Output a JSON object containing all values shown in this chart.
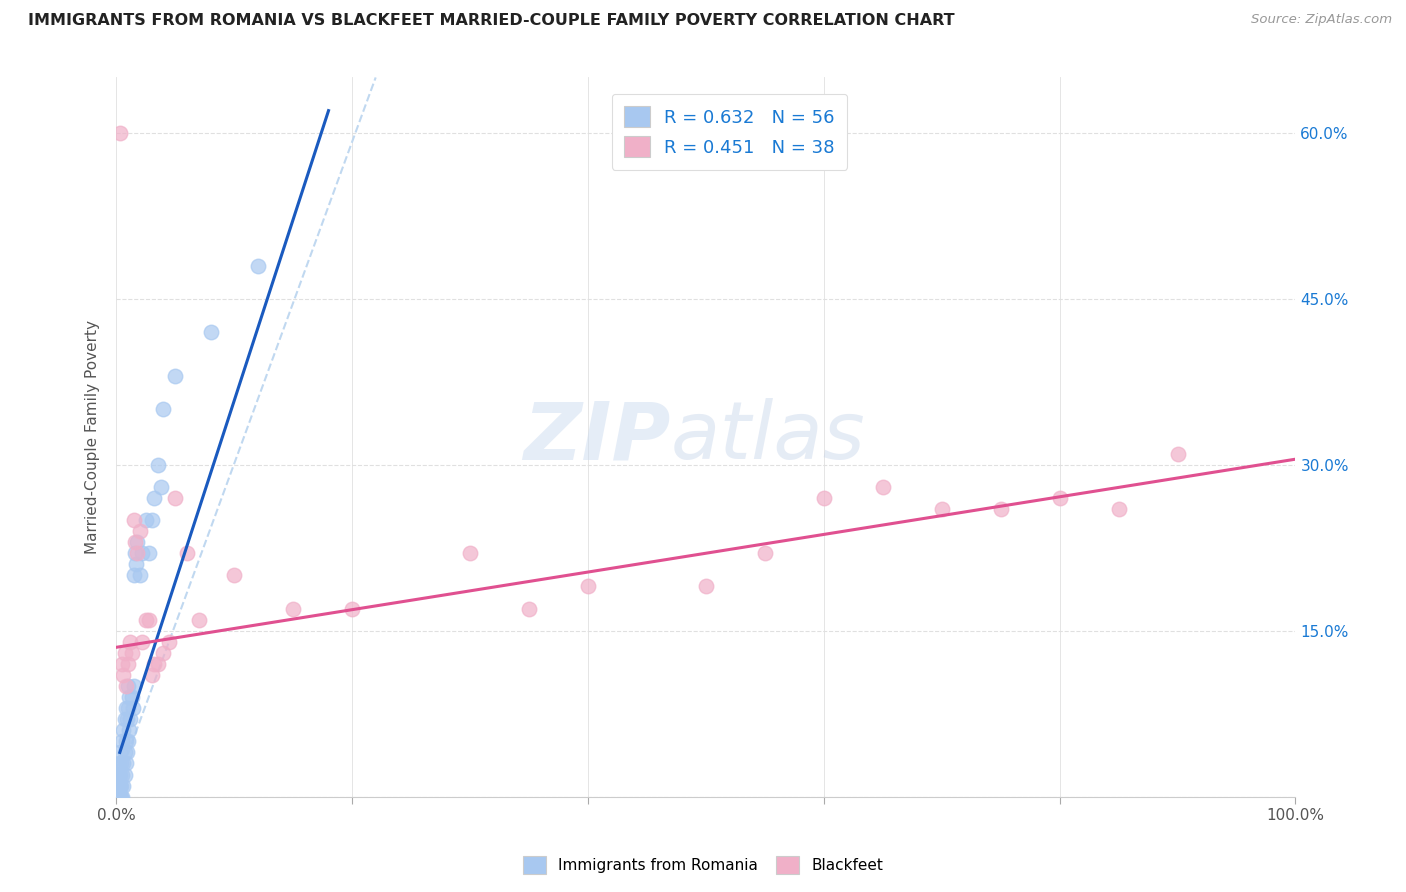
{
  "title": "IMMIGRANTS FROM ROMANIA VS BLACKFEET MARRIED-COUPLE FAMILY POVERTY CORRELATION CHART",
  "source": "Source: ZipAtlas.com",
  "ylabel": "Married-Couple Family Poverty",
  "xlim": [
    0,
    1.0
  ],
  "ylim": [
    0,
    0.65
  ],
  "xticks": [
    0.0,
    0.2,
    0.4,
    0.6,
    0.8,
    1.0
  ],
  "xticklabels": [
    "0.0%",
    "",
    "",
    "",
    "",
    "100.0%"
  ],
  "yticks": [
    0.0,
    0.15,
    0.3,
    0.45,
    0.6
  ],
  "yticklabels_right": [
    "",
    "15.0%",
    "30.0%",
    "45.0%",
    "60.0%"
  ],
  "grid_color": "#e0e0e0",
  "blue_scatter_color": "#a8c8f0",
  "pink_scatter_color": "#f0b0c8",
  "blue_line_color": "#1a5abf",
  "pink_line_color": "#e05090",
  "blue_dashed_color": "#c0d8f0",
  "accent_color": "#1a7ad4",
  "legend_label1": "R = 0.632   N = 56",
  "legend_label2": "R = 0.451   N = 38",
  "bottom_label1": "Immigrants from Romania",
  "bottom_label2": "Blackfeet",
  "romania_scatter_x": [
    0.0005,
    0.001,
    0.001,
    0.0015,
    0.0015,
    0.002,
    0.002,
    0.002,
    0.0025,
    0.0025,
    0.003,
    0.003,
    0.003,
    0.003,
    0.004,
    0.004,
    0.004,
    0.005,
    0.005,
    0.005,
    0.006,
    0.006,
    0.006,
    0.007,
    0.007,
    0.007,
    0.008,
    0.008,
    0.008,
    0.009,
    0.009,
    0.01,
    0.01,
    0.01,
    0.011,
    0.011,
    0.012,
    0.013,
    0.014,
    0.015,
    0.015,
    0.016,
    0.017,
    0.018,
    0.02,
    0.022,
    0.025,
    0.028,
    0.03,
    0.032,
    0.035,
    0.038,
    0.04,
    0.05,
    0.08,
    0.12
  ],
  "romania_scatter_y": [
    0.0,
    0.0,
    0.02,
    0.01,
    0.0,
    0.0,
    0.01,
    0.03,
    0.02,
    0.0,
    0.0,
    0.01,
    0.02,
    0.04,
    0.0,
    0.01,
    0.03,
    0.0,
    0.02,
    0.05,
    0.01,
    0.03,
    0.06,
    0.02,
    0.04,
    0.07,
    0.03,
    0.05,
    0.08,
    0.04,
    0.07,
    0.05,
    0.08,
    0.1,
    0.06,
    0.09,
    0.07,
    0.09,
    0.08,
    0.1,
    0.2,
    0.22,
    0.21,
    0.23,
    0.2,
    0.22,
    0.25,
    0.22,
    0.25,
    0.27,
    0.3,
    0.28,
    0.35,
    0.38,
    0.42,
    0.48
  ],
  "blackfeet_scatter_x": [
    0.003,
    0.005,
    0.006,
    0.007,
    0.008,
    0.01,
    0.012,
    0.013,
    0.015,
    0.016,
    0.018,
    0.02,
    0.022,
    0.025,
    0.028,
    0.03,
    0.032,
    0.035,
    0.04,
    0.045,
    0.05,
    0.06,
    0.07,
    0.1,
    0.15,
    0.2,
    0.3,
    0.35,
    0.4,
    0.5,
    0.55,
    0.6,
    0.65,
    0.7,
    0.75,
    0.8,
    0.85,
    0.9
  ],
  "blackfeet_scatter_y": [
    0.6,
    0.12,
    0.11,
    0.13,
    0.1,
    0.12,
    0.14,
    0.13,
    0.25,
    0.23,
    0.22,
    0.24,
    0.14,
    0.16,
    0.16,
    0.11,
    0.12,
    0.12,
    0.13,
    0.14,
    0.27,
    0.22,
    0.16,
    0.2,
    0.17,
    0.17,
    0.22,
    0.17,
    0.19,
    0.19,
    0.22,
    0.27,
    0.28,
    0.26,
    0.26,
    0.27,
    0.26,
    0.31
  ],
  "romania_solid_trend_x": [
    0.003,
    0.18
  ],
  "romania_solid_trend_y": [
    0.04,
    0.62
  ],
  "romania_dashed_trend_x": [
    0.0,
    0.22
  ],
  "romania_dashed_trend_y": [
    0.01,
    0.65
  ],
  "blackfeet_trend_x": [
    0.0,
    1.0
  ],
  "blackfeet_trend_y": [
    0.135,
    0.305
  ]
}
